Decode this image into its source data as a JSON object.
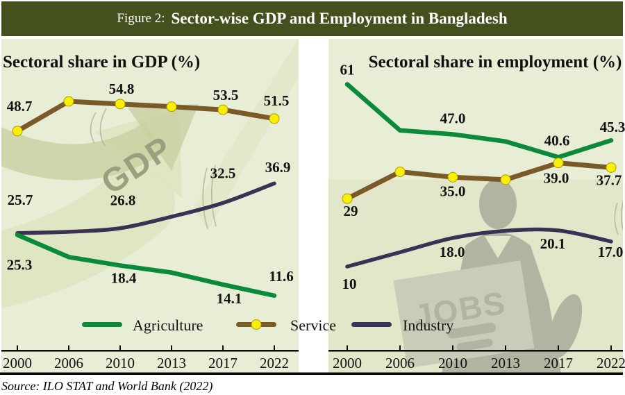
{
  "figure": {
    "title_prefix": "Figure 2:",
    "title": "Sector-wise GDP and Employment in Bangladesh",
    "source": "Source: ILO STAT and World Bank (2022)"
  },
  "colors": {
    "header_bg": "#44501e",
    "panel_bg": "#e8edd6",
    "panel_band": "#e2e7ca",
    "agriculture": "#0c8a3c",
    "service": "#7a5a28",
    "industry": "#3a3153",
    "marker_fill": "#f9ee0a",
    "marker_edge": "#b09a00",
    "watermark": "#b2b3a0",
    "watermark_light": "#c9ccb6",
    "watermark_text": "#9aa07f",
    "arrow_light": "#dde4c1",
    "arrow_dark": "#c8d0a0",
    "sketch": "#a9ac92",
    "axis": "#0a0a0a",
    "text": "#121212"
  },
  "legend": [
    {
      "label": "Agriculture",
      "series": "agriculture",
      "marker": false
    },
    {
      "label": "Service",
      "series": "service",
      "marker": true
    },
    {
      "label": "Industry",
      "series": "industry",
      "marker": false
    }
  ],
  "chart_data": [
    {
      "type": "line",
      "title": "Sectoral share in GDP (%)",
      "watermark": "GDP",
      "xlabel": "",
      "ylabel": "Sectoral share in GDP (%)",
      "ylim": [
        0,
        78
      ],
      "grid": false,
      "legend_position": "bottom",
      "categories": [
        "2000",
        "2006",
        "2010",
        "2013",
        "2017",
        "2022"
      ],
      "series": [
        {
          "name": "Service",
          "values": [
            48.7,
            55.4,
            54.8,
            54.2,
            53.5,
            51.5
          ],
          "labels": [
            "48.7",
            "",
            "54.8",
            "",
            "53.5",
            "51.5"
          ]
        },
        {
          "name": "Industry",
          "values": [
            25.7,
            26.0,
            26.8,
            29.4,
            32.5,
            36.9
          ],
          "labels": [
            "25.7",
            "",
            "26.8",
            "",
            "32.5",
            "36.9"
          ]
        },
        {
          "name": "Agriculture",
          "values": [
            25.3,
            20.3,
            18.4,
            16.8,
            14.1,
            11.6
          ],
          "labels": [
            "25.3",
            "",
            "18.4",
            "",
            "14.1",
            "11.6"
          ]
        }
      ]
    },
    {
      "type": "line",
      "title": "Sectoral share in employment (%)",
      "watermark": "JOBS",
      "xlabel": "",
      "ylabel": "Sectoral share in employment (%)",
      "ylim": [
        0,
        70
      ],
      "grid": false,
      "legend_position": "bottom",
      "categories": [
        "2000",
        "2006",
        "2010",
        "2013",
        "2017",
        "2022"
      ],
      "series": [
        {
          "name": "Agriculture",
          "values": [
            61,
            48.1,
            47.0,
            45.0,
            40.6,
            45.3
          ],
          "labels": [
            "61",
            "",
            "47.0",
            "",
            "40.6",
            "45.3"
          ]
        },
        {
          "name": "Service",
          "values": [
            29,
            36.5,
            35.0,
            34.3,
            39.0,
            37.7
          ],
          "labels": [
            "29",
            "",
            "35.0",
            "",
            "39.0",
            "37.7"
          ]
        },
        {
          "name": "Industry",
          "values": [
            10,
            14.0,
            18.0,
            20.0,
            20.1,
            17.0
          ],
          "labels": [
            "10",
            "",
            "18.0",
            "",
            "20.1",
            "17.0"
          ]
        }
      ]
    }
  ]
}
